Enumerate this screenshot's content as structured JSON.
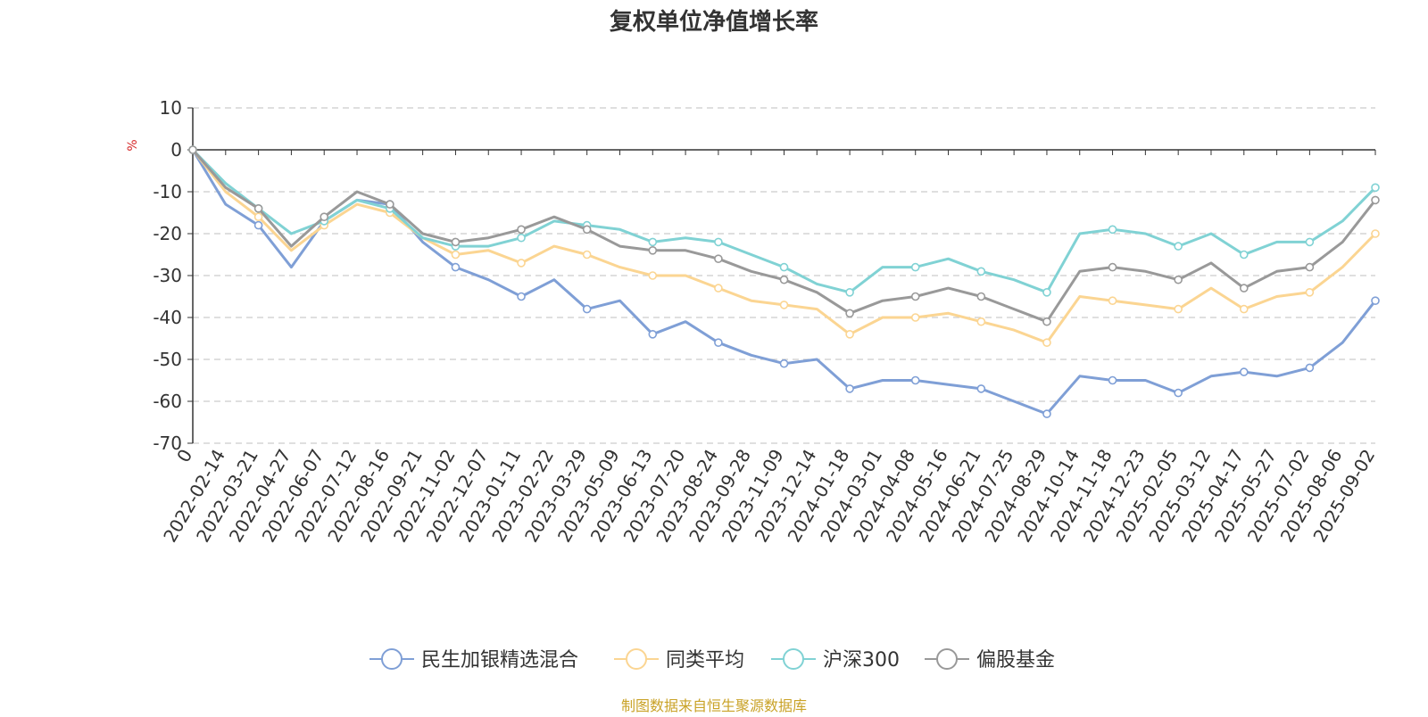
{
  "chart_data": {
    "type": "line",
    "title": "复权单位净值增长率",
    "ylabel": "%",
    "ylim": [
      -70,
      10
    ],
    "yticks": [
      "10",
      "0",
      "-10",
      "-20",
      "-30",
      "-40",
      "-50",
      "-60",
      "-70"
    ],
    "y_tick_values": [
      10,
      0,
      -10,
      -20,
      -30,
      -40,
      -50,
      -60,
      -70
    ],
    "grid": true,
    "legend_position": "bottom",
    "source_note": "制图数据来自恒生聚源数据库",
    "categories": [
      "0",
      "2022-02-14",
      "2022-03-21",
      "2022-04-27",
      "2022-06-07",
      "2022-07-12",
      "2022-08-16",
      "2022-09-21",
      "2022-11-02",
      "2022-12-07",
      "2023-01-11",
      "2023-02-22",
      "2023-03-29",
      "2023-05-09",
      "2023-06-13",
      "2023-07-20",
      "2023-08-24",
      "2023-09-28",
      "2023-11-09",
      "2023-12-14",
      "2024-01-18",
      "2024-03-01",
      "2024-04-08",
      "2024-05-16",
      "2024-06-21",
      "2024-07-25",
      "2024-08-29",
      "2024-10-14",
      "2024-11-18",
      "2024-12-23",
      "2025-02-05",
      "2025-03-12",
      "2025-04-17",
      "2025-05-27",
      "2025-07-02",
      "2025-08-06",
      "2025-09-02"
    ],
    "series": [
      {
        "name": "民生加银精选混合",
        "color": "#7f9fd6",
        "values": [
          0,
          -13,
          -18,
          -28,
          -17,
          -12,
          -13,
          -22,
          -28,
          -31,
          -35,
          -31,
          -38,
          -36,
          -44,
          -41,
          -46,
          -49,
          -51,
          -50,
          -57,
          -55,
          -55,
          -56,
          -57,
          -60,
          -63,
          -54,
          -55,
          -55,
          -58,
          -54,
          -53,
          -54,
          -52,
          -46,
          -36
        ]
      },
      {
        "name": "同类平均",
        "color": "#fbd592",
        "values": [
          0,
          -10,
          -16,
          -24,
          -18,
          -13,
          -15,
          -21,
          -25,
          -24,
          -27,
          -23,
          -25,
          -28,
          -30,
          -30,
          -33,
          -36,
          -37,
          -38,
          -44,
          -40,
          -40,
          -39,
          -41,
          -43,
          -46,
          -35,
          -36,
          -37,
          -38,
          -33,
          -38,
          -35,
          -34,
          -28,
          -20
        ]
      },
      {
        "name": "沪深300",
        "color": "#80d2d4",
        "values": [
          0,
          -8,
          -14,
          -20,
          -17,
          -12,
          -14,
          -21,
          -23,
          -23,
          -21,
          -17,
          -18,
          -19,
          -22,
          -21,
          -22,
          -25,
          -28,
          -32,
          -34,
          -28,
          -28,
          -26,
          -29,
          -31,
          -34,
          -20,
          -19,
          -20,
          -23,
          -20,
          -25,
          -22,
          -22,
          -17,
          -9
        ]
      },
      {
        "name": "偏股基金",
        "color": "#999999",
        "values": [
          0,
          -9,
          -14,
          -23,
          -16,
          -10,
          -13,
          -20,
          -22,
          -21,
          -19,
          -16,
          -19,
          -23,
          -24,
          -24,
          -26,
          -29,
          -31,
          -34,
          -39,
          -36,
          -35,
          -33,
          -35,
          -38,
          -41,
          -29,
          -28,
          -29,
          -31,
          -27,
          -33,
          -29,
          -28,
          -22,
          -12
        ]
      }
    ]
  }
}
